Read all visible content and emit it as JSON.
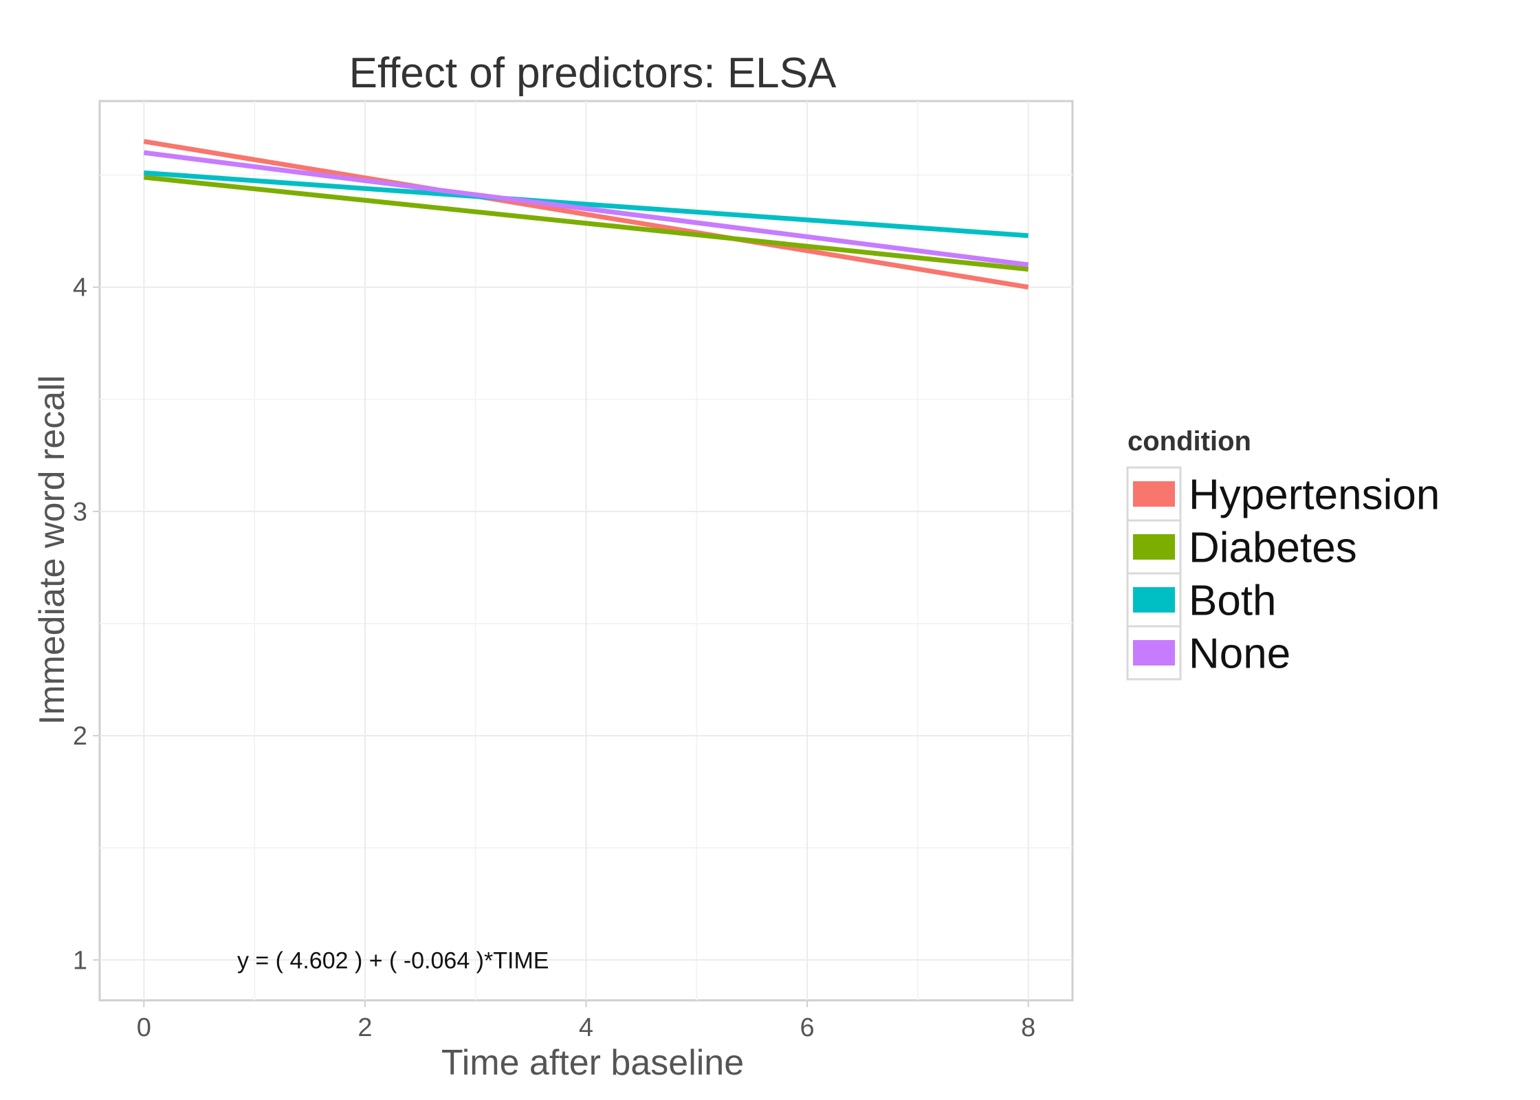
{
  "chart_data": {
    "type": "line",
    "title": "Effect of predictors: ELSA",
    "xlabel": "Time after baseline",
    "ylabel": "Immediate word recall",
    "xlim": [
      -0.4,
      8.4
    ],
    "ylim": [
      0.82,
      4.83
    ],
    "x_ticks": [
      0,
      2,
      4,
      6,
      8
    ],
    "y_ticks": [
      1,
      2,
      3,
      4
    ],
    "grid": true,
    "legend_title": "condition",
    "legend_position": "right",
    "series": [
      {
        "name": "Hypertension",
        "color": "#F8766D",
        "x": [
          0,
          8
        ],
        "values": [
          4.65,
          4.0
        ]
      },
      {
        "name": "Diabetes",
        "color": "#7CAE00",
        "x": [
          0,
          8
        ],
        "values": [
          4.49,
          4.08
        ]
      },
      {
        "name": "Both",
        "color": "#00BFC4",
        "x": [
          0,
          8
        ],
        "values": [
          4.51,
          4.23
        ]
      },
      {
        "name": "None",
        "color": "#C77CFF",
        "x": [
          0,
          8
        ],
        "values": [
          4.6,
          4.1
        ]
      }
    ],
    "annotation": {
      "text": "y = ( 4.602 ) + ( -0.064 )*TIME",
      "x": 3.0,
      "y": 1.0
    }
  }
}
